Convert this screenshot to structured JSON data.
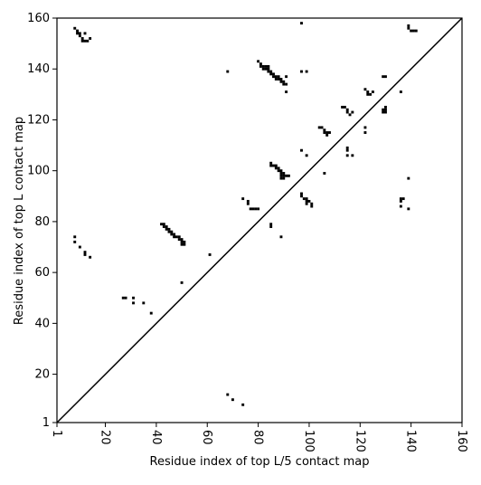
{
  "chart_data": {
    "type": "scatter",
    "marker": "square",
    "color": "#000000",
    "diagonal": true,
    "xlabel": "Residue index of top L/5 contact map",
    "ylabel": "Residue index of top L contact map",
    "xlim": [
      1,
      160
    ],
    "ylim": [
      1,
      160
    ],
    "xticks": [
      1,
      20,
      40,
      60,
      80,
      100,
      120,
      140,
      160
    ],
    "yticks": [
      1,
      20,
      40,
      60,
      80,
      100,
      120,
      140,
      160
    ],
    "x": [
      8,
      9,
      10,
      10,
      11,
      11,
      12,
      12,
      13,
      14,
      9,
      80,
      81,
      81,
      82,
      82,
      83,
      83,
      84,
      84,
      84,
      85,
      85,
      86,
      86,
      87,
      87,
      88,
      88,
      89,
      89,
      90,
      90,
      91,
      91,
      91,
      68,
      97,
      97,
      99,
      104,
      105,
      106,
      106,
      107,
      107,
      108,
      113,
      114,
      115,
      115,
      116,
      117,
      122,
      123,
      123,
      124,
      125,
      122,
      122,
      129,
      130,
      129,
      130,
      130,
      129,
      130,
      136,
      139,
      139,
      140,
      141,
      142,
      85,
      85,
      86,
      87,
      87,
      88,
      88,
      89,
      89,
      90,
      90,
      89,
      91,
      92,
      90,
      89,
      97,
      99,
      106,
      115,
      115,
      115,
      117,
      97,
      97,
      98,
      99,
      99,
      100,
      101,
      101,
      99,
      139,
      136,
      137,
      136,
      136,
      139,
      74,
      76,
      76,
      77,
      78,
      79,
      80,
      85,
      85,
      89,
      42,
      43,
      43,
      44,
      44,
      45,
      45,
      46,
      46,
      47,
      47,
      48,
      49,
      49,
      50,
      50,
      51,
      51,
      50,
      61,
      50,
      8,
      8,
      10,
      12,
      12,
      14,
      27,
      28,
      31,
      31,
      35,
      38,
      68,
      70,
      74
    ],
    "y": [
      156,
      155,
      154,
      153,
      152,
      151,
      151,
      154,
      151,
      152,
      154,
      143,
      142,
      141,
      141,
      140,
      140,
      141,
      141,
      140,
      139,
      139,
      138,
      138,
      137,
      137,
      136,
      137,
      136,
      136,
      135,
      135,
      134,
      134,
      137,
      131,
      139,
      158,
      139,
      139,
      117,
      117,
      116,
      115,
      115,
      114,
      115,
      125,
      125,
      124,
      123,
      122,
      123,
      132,
      131,
      130,
      130,
      131,
      117,
      115,
      137,
      137,
      124,
      124,
      123,
      123,
      125,
      131,
      157,
      156,
      155,
      155,
      155,
      103,
      102,
      102,
      102,
      101,
      101,
      100,
      100,
      99,
      99,
      98,
      98,
      98,
      98,
      97,
      97,
      108,
      106,
      99,
      109,
      108,
      106,
      106,
      91,
      90,
      89,
      89,
      88,
      88,
      87,
      86,
      87,
      97,
      89,
      89,
      88,
      86,
      85,
      89,
      88,
      87,
      85,
      85,
      85,
      85,
      79,
      78,
      74,
      79,
      79,
      78,
      78,
      77,
      77,
      76,
      76,
      75,
      75,
      74,
      74,
      74,
      73,
      73,
      72,
      72,
      71,
      71,
      67,
      56,
      74,
      72,
      70,
      68,
      67,
      66,
      50,
      50,
      50,
      48,
      48,
      44,
      12,
      10,
      8
    ]
  }
}
